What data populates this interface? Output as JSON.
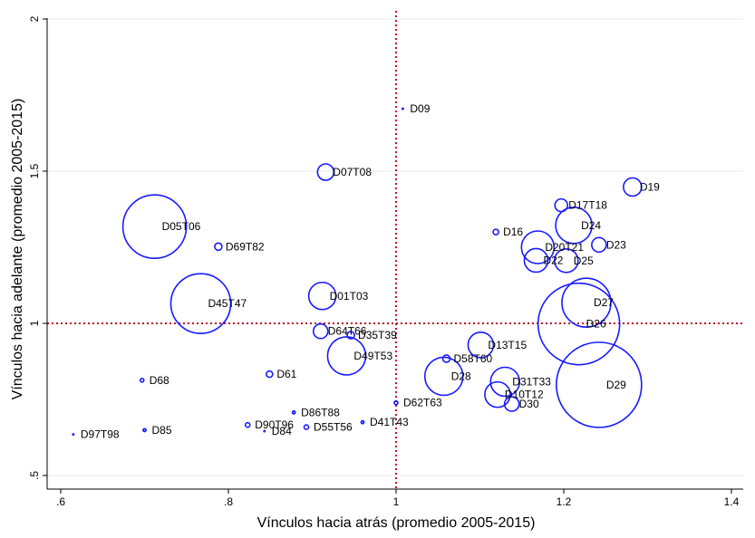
{
  "chart_data": {
    "type": "scatter",
    "subtype": "bubble",
    "xlabel": "Vínculos hacia atrás (promedio 2005-2015)",
    "ylabel": "Vínculos hacia adelante (promedio 2005-2015)",
    "xlim": [
      0.6,
      1.4
    ],
    "ylim": [
      0.5,
      2.0
    ],
    "xticks": [
      0.6,
      0.8,
      1.0,
      1.2,
      1.4
    ],
    "xtick_labels": [
      ".6",
      ".8",
      "1",
      "1.2",
      "1.4"
    ],
    "yticks": [
      0.5,
      1.0,
      1.5,
      2.0
    ],
    "ytick_labels": [
      ".5",
      "1",
      "1.5",
      "2"
    ],
    "grid": "horizontal",
    "reference_lines": {
      "x": 1.0,
      "y": 1.0,
      "style": "dotted",
      "color": "#c0102a"
    },
    "marker_color": "#1a1aff",
    "points": [
      {
        "label": "D09",
        "x": 1.008,
        "y": 1.705,
        "r": 0.6
      },
      {
        "label": "D07T08",
        "x": 0.916,
        "y": 1.497,
        "r": 9
      },
      {
        "label": "D19",
        "x": 1.282,
        "y": 1.448,
        "r": 10
      },
      {
        "label": "D17T18",
        "x": 1.197,
        "y": 1.388,
        "r": 7
      },
      {
        "label": "D05T06",
        "x": 0.712,
        "y": 1.318,
        "r": 35
      },
      {
        "label": "D24",
        "x": 1.212,
        "y": 1.322,
        "r": 20
      },
      {
        "label": "D16",
        "x": 1.119,
        "y": 1.3,
        "r": 3
      },
      {
        "label": "D23",
        "x": 1.242,
        "y": 1.258,
        "r": 8
      },
      {
        "label": "D20T21",
        "x": 1.169,
        "y": 1.25,
        "r": 18
      },
      {
        "label": "D69T82",
        "x": 0.788,
        "y": 1.252,
        "r": 4
      },
      {
        "label": "D22",
        "x": 1.167,
        "y": 1.207,
        "r": 13
      },
      {
        "label": "D25",
        "x": 1.203,
        "y": 1.206,
        "r": 13
      },
      {
        "label": "D01T03",
        "x": 0.912,
        "y": 1.09,
        "r": 15
      },
      {
        "label": "D45T47",
        "x": 0.767,
        "y": 1.065,
        "r": 33
      },
      {
        "label": "D27",
        "x": 1.227,
        "y": 1.068,
        "r": 27
      },
      {
        "label": "D26",
        "x": 1.218,
        "y": 0.998,
        "r": 45
      },
      {
        "label": "D64T66",
        "x": 0.91,
        "y": 0.974,
        "r": 8
      },
      {
        "label": "D35T39",
        "x": 0.946,
        "y": 0.961,
        "r": 4
      },
      {
        "label": "D13T15",
        "x": 1.101,
        "y": 0.929,
        "r": 14
      },
      {
        "label": "D49T53",
        "x": 0.941,
        "y": 0.893,
        "r": 21
      },
      {
        "label": "D58T60",
        "x": 1.06,
        "y": 0.884,
        "r": 4
      },
      {
        "label": "D61",
        "x": 0.849,
        "y": 0.833,
        "r": 3.5
      },
      {
        "label": "D28",
        "x": 1.057,
        "y": 0.826,
        "r": 21
      },
      {
        "label": "D68",
        "x": 0.697,
        "y": 0.813,
        "r": 2
      },
      {
        "label": "D29",
        "x": 1.242,
        "y": 0.798,
        "r": 47
      },
      {
        "label": "D31T33",
        "x": 1.13,
        "y": 0.808,
        "r": 16
      },
      {
        "label": "D10T12",
        "x": 1.121,
        "y": 0.766,
        "r": 14
      },
      {
        "label": "D62T63",
        "x": 1.0,
        "y": 0.739,
        "r": 2
      },
      {
        "label": "D30",
        "x": 1.138,
        "y": 0.735,
        "r": 8
      },
      {
        "label": "D86T88",
        "x": 0.878,
        "y": 0.707,
        "r": 1.5
      },
      {
        "label": "D41T43",
        "x": 0.96,
        "y": 0.675,
        "r": 1.5
      },
      {
        "label": "D90T96",
        "x": 0.823,
        "y": 0.666,
        "r": 2.5
      },
      {
        "label": "D55T56",
        "x": 0.893,
        "y": 0.659,
        "r": 2.5
      },
      {
        "label": "D84",
        "x": 0.843,
        "y": 0.646,
        "r": 0.5
      },
      {
        "label": "D85",
        "x": 0.7,
        "y": 0.649,
        "r": 1.5
      },
      {
        "label": "D97T98",
        "x": 0.615,
        "y": 0.635,
        "r": 0.5
      }
    ]
  }
}
